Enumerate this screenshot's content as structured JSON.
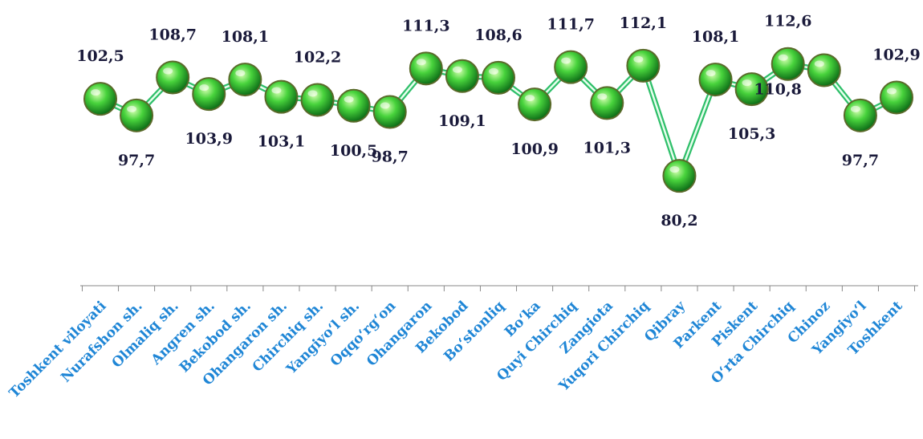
{
  "chart_data": {
    "type": "line",
    "categories": [
      "Toshkent viloyati",
      "Nurafshon sh.",
      "Olmaliq sh.",
      "Angren sh.",
      "Bekobod sh.",
      "Ohangaron sh.",
      "Chirchiq sh.",
      "Yangiyo‘l sh.",
      "Oqqo‘rg‘on",
      "Ohangaron",
      "Bekobod",
      "Bo‘stonliq",
      "Bo‘ka",
      "Quyi Chirchiq",
      "Zangiota",
      "Yuqori Chirchiq",
      "Qibray",
      "Parkent",
      "Piskent",
      "O‘rta Chirchiq",
      "Chinoz",
      "Yangiyo‘l",
      "Toshkent"
    ],
    "values": [
      102.5,
      97.7,
      108.7,
      103.9,
      108.1,
      103.1,
      102.2,
      100.5,
      98.7,
      111.3,
      109.1,
      108.6,
      100.9,
      111.7,
      101.3,
      112.1,
      80.2,
      108.1,
      105.3,
      112.6,
      110.8,
      97.7,
      102.9
    ],
    "value_labels": [
      "102,5",
      "97,7",
      "108,7",
      "103,9",
      "108,1",
      "103,1",
      "102,2",
      "100,5",
      "98,7",
      "111,3",
      "109,1",
      "108,6",
      "100,9",
      "111,7",
      "101,3",
      "112,1",
      "80,2",
      "108,1",
      "105,3",
      "112,6",
      "110,8",
      "97,7",
      "102,9"
    ],
    "label_positions": [
      "above",
      "below",
      "above",
      "below",
      "above",
      "below",
      "above",
      "below",
      "below",
      "above",
      "below",
      "above",
      "below",
      "above",
      "below",
      "above",
      "below",
      "above",
      "below",
      "above",
      "left",
      "below",
      "above"
    ],
    "title": "",
    "xlabel": "",
    "ylabel": "",
    "ylim": [
      80,
      113
    ],
    "grid": false,
    "legend": "none",
    "colors": {
      "line": "#2fbf6a",
      "line_inner": "#e8ffee",
      "marker_fill_light": "#c8ff9a",
      "marker_fill_mid": "#3fcf3a",
      "marker_fill_dark": "#0f7a1a",
      "marker_stroke": "#5a6a2a",
      "value_label": "#1a1a3a",
      "category_label": "#1f86d6",
      "axis": "#888888"
    }
  }
}
